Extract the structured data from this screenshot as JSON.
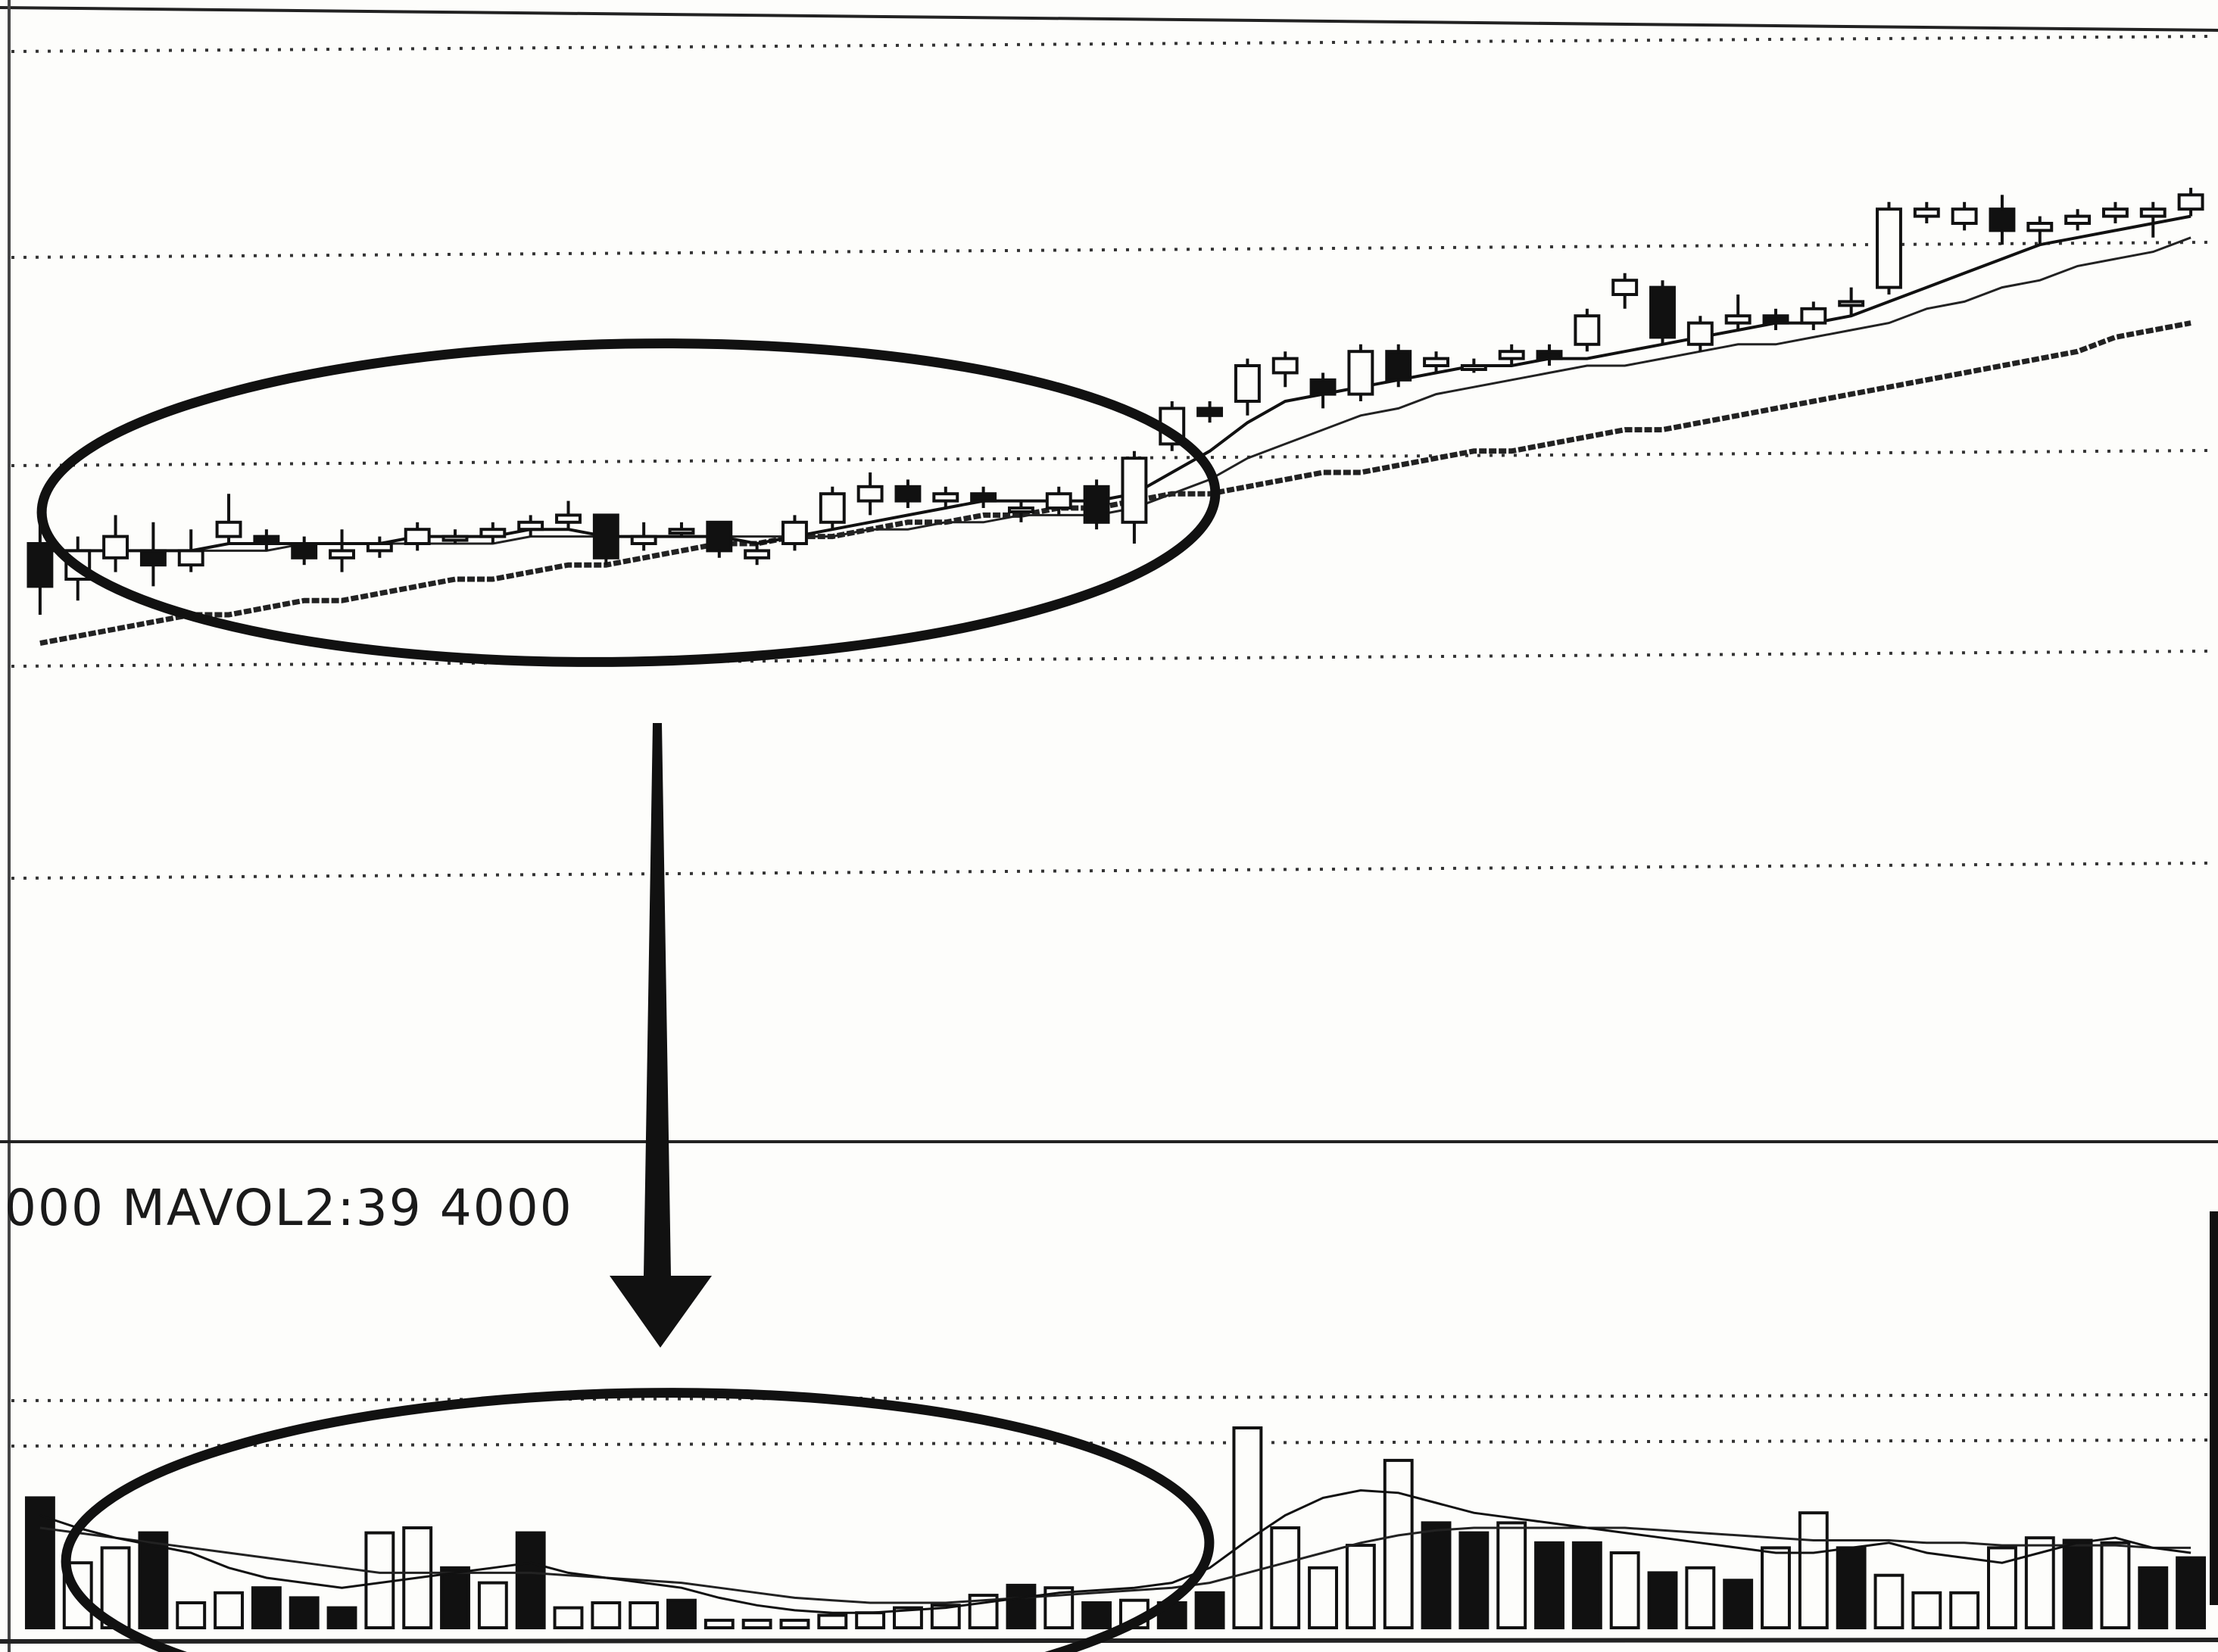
{
  "vol_label": "000 MAVOL2:39 4000",
  "chart_data": [
    {
      "type": "candlestick",
      "title": "",
      "xlabel": "",
      "ylabel": "",
      "grid": true,
      "x": [
        1,
        2,
        3,
        4,
        5,
        6,
        7,
        8,
        9,
        10,
        11,
        12,
        13,
        14,
        15,
        16,
        17,
        18,
        19,
        20,
        21,
        22,
        23,
        24,
        25,
        26,
        27,
        28,
        29,
        30,
        31,
        32,
        33,
        34,
        35,
        36,
        37,
        38,
        39,
        40,
        41,
        42,
        43,
        44,
        45,
        46,
        47,
        48,
        49,
        50,
        51,
        52,
        53,
        54,
        55,
        56,
        57,
        58
      ],
      "ylim": [
        0,
        100
      ],
      "candles": [
        {
          "o": 30,
          "h": 35,
          "l": 20,
          "c": 24
        },
        {
          "o": 25,
          "h": 31,
          "l": 22,
          "c": 29
        },
        {
          "o": 28,
          "h": 34,
          "l": 26,
          "c": 31
        },
        {
          "o": 29,
          "h": 33,
          "l": 24,
          "c": 27
        },
        {
          "o": 27,
          "h": 32,
          "l": 26,
          "c": 29
        },
        {
          "o": 31,
          "h": 37,
          "l": 30,
          "c": 33
        },
        {
          "o": 31,
          "h": 32,
          "l": 29,
          "c": 30
        },
        {
          "o": 30,
          "h": 31,
          "l": 27,
          "c": 28
        },
        {
          "o": 28,
          "h": 32,
          "l": 26,
          "c": 29
        },
        {
          "o": 29,
          "h": 31,
          "l": 28,
          "c": 30
        },
        {
          "o": 30,
          "h": 33,
          "l": 29,
          "c": 32
        },
        {
          "o": 31,
          "h": 32,
          "l": 30,
          "c": 31
        },
        {
          "o": 31,
          "h": 33,
          "l": 30,
          "c": 32
        },
        {
          "o": 32,
          "h": 34,
          "l": 31,
          "c": 33
        },
        {
          "o": 33,
          "h": 36,
          "l": 32,
          "c": 34
        },
        {
          "o": 34,
          "h": 34,
          "l": 27,
          "c": 28
        },
        {
          "o": 30,
          "h": 33,
          "l": 29,
          "c": 31
        },
        {
          "o": 32,
          "h": 33,
          "l": 31,
          "c": 32
        },
        {
          "o": 33,
          "h": 33,
          "l": 28,
          "c": 29
        },
        {
          "o": 28,
          "h": 30,
          "l": 27,
          "c": 29
        },
        {
          "o": 30,
          "h": 34,
          "l": 29,
          "c": 33
        },
        {
          "o": 33,
          "h": 38,
          "l": 32,
          "c": 37
        },
        {
          "o": 36,
          "h": 40,
          "l": 34,
          "c": 38
        },
        {
          "o": 38,
          "h": 39,
          "l": 35,
          "c": 36
        },
        {
          "o": 36,
          "h": 38,
          "l": 35,
          "c": 37
        },
        {
          "o": 37,
          "h": 38,
          "l": 35,
          "c": 36
        },
        {
          "o": 35,
          "h": 36,
          "l": 33,
          "c": 35
        },
        {
          "o": 35,
          "h": 38,
          "l": 34,
          "c": 37
        },
        {
          "o": 38,
          "h": 39,
          "l": 32,
          "c": 33
        },
        {
          "o": 33,
          "h": 43,
          "l": 30,
          "c": 42
        },
        {
          "o": 44,
          "h": 50,
          "l": 43,
          "c": 49
        },
        {
          "o": 49,
          "h": 50,
          "l": 47,
          "c": 48
        },
        {
          "o": 50,
          "h": 56,
          "l": 48,
          "c": 55
        },
        {
          "o": 54,
          "h": 57,
          "l": 52,
          "c": 56
        },
        {
          "o": 53,
          "h": 54,
          "l": 49,
          "c": 51
        },
        {
          "o": 51,
          "h": 58,
          "l": 50,
          "c": 57
        },
        {
          "o": 57,
          "h": 58,
          "l": 52,
          "c": 53
        },
        {
          "o": 55,
          "h": 57,
          "l": 54,
          "c": 56
        },
        {
          "o": 55,
          "h": 56,
          "l": 54,
          "c": 55
        },
        {
          "o": 56,
          "h": 58,
          "l": 55,
          "c": 57
        },
        {
          "o": 57,
          "h": 58,
          "l": 55,
          "c": 56
        },
        {
          "o": 58,
          "h": 63,
          "l": 57,
          "c": 62
        },
        {
          "o": 65,
          "h": 68,
          "l": 63,
          "c": 67
        },
        {
          "o": 66,
          "h": 67,
          "l": 58,
          "c": 59
        },
        {
          "o": 58,
          "h": 62,
          "l": 57,
          "c": 61
        },
        {
          "o": 61,
          "h": 65,
          "l": 60,
          "c": 62
        },
        {
          "o": 62,
          "h": 63,
          "l": 60,
          "c": 61
        },
        {
          "o": 61,
          "h": 64,
          "l": 60,
          "c": 63
        },
        {
          "o": 64,
          "h": 66,
          "l": 62,
          "c": 64
        },
        {
          "o": 66,
          "h": 78,
          "l": 65,
          "c": 77
        },
        {
          "o": 76,
          "h": 78,
          "l": 75,
          "c": 77
        },
        {
          "o": 75,
          "h": 78,
          "l": 74,
          "c": 77
        },
        {
          "o": 77,
          "h": 79,
          "l": 72,
          "c": 74
        },
        {
          "o": 74,
          "h": 76,
          "l": 72,
          "c": 75
        },
        {
          "o": 75,
          "h": 77,
          "l": 74,
          "c": 76
        },
        {
          "o": 76,
          "h": 78,
          "l": 75,
          "c": 77
        },
        {
          "o": 76,
          "h": 78,
          "l": 73,
          "c": 77
        },
        {
          "o": 77,
          "h": 80,
          "l": 76,
          "c": 79
        }
      ],
      "ma_short": [
        29,
        29,
        29,
        29,
        29,
        30,
        30,
        30,
        30,
        30,
        31,
        31,
        31,
        32,
        32,
        31,
        31,
        31,
        31,
        30,
        31,
        32,
        33,
        34,
        35,
        36,
        36,
        36,
        36,
        37,
        40,
        43,
        47,
        50,
        51,
        52,
        53,
        54,
        55,
        55,
        56,
        56,
        57,
        58,
        59,
        60,
        61,
        61,
        62,
        64,
        66,
        68,
        70,
        72,
        73,
        74,
        75,
        76
      ],
      "ma_mid": [
        29,
        29,
        29,
        29,
        29,
        29,
        29,
        30,
        30,
        30,
        30,
        30,
        30,
        31,
        31,
        31,
        31,
        31,
        31,
        31,
        31,
        31,
        32,
        32,
        33,
        33,
        34,
        34,
        34,
        35,
        37,
        39,
        42,
        44,
        46,
        48,
        49,
        51,
        52,
        53,
        54,
        55,
        55,
        56,
        57,
        58,
        58,
        59,
        60,
        61,
        63,
        64,
        66,
        67,
        69,
        70,
        71,
        73
      ],
      "ma_long": [
        16,
        17,
        18,
        19,
        20,
        20,
        21,
        22,
        22,
        23,
        24,
        25,
        25,
        26,
        27,
        27,
        28,
        29,
        30,
        30,
        31,
        31,
        32,
        33,
        33,
        34,
        34,
        35,
        35,
        36,
        37,
        37,
        38,
        39,
        40,
        40,
        41,
        42,
        43,
        43,
        44,
        45,
        46,
        46,
        47,
        48,
        49,
        50,
        51,
        52,
        53,
        54,
        55,
        56,
        57,
        59,
        60,
        61
      ],
      "annotation": "ellipse over consolidation phase"
    },
    {
      "type": "bar",
      "title": "",
      "xlabel": "",
      "ylabel": "",
      "grid": true,
      "ylim": [
        0,
        100
      ],
      "values": [
        52,
        26,
        32,
        38,
        10,
        14,
        16,
        12,
        8,
        38,
        40,
        24,
        18,
        38,
        8,
        10,
        10,
        11,
        3,
        3,
        3,
        5,
        6,
        8,
        9,
        13,
        17,
        16,
        10,
        11,
        10,
        14,
        80,
        40,
        24,
        33,
        67,
        42,
        38,
        42,
        34,
        34,
        30,
        22,
        24,
        19,
        32,
        46,
        32,
        21,
        14,
        14,
        32,
        36,
        35,
        34,
        24,
        28
      ],
      "filled": [
        true,
        false,
        false,
        true,
        false,
        false,
        true,
        true,
        true,
        false,
        false,
        true,
        false,
        true,
        false,
        false,
        false,
        true,
        false,
        false,
        false,
        false,
        false,
        false,
        false,
        false,
        true,
        false,
        true,
        false,
        true,
        true,
        false,
        false,
        false,
        false,
        false,
        true,
        true,
        false,
        true,
        true,
        false,
        true,
        false,
        true,
        false,
        false,
        true,
        false,
        false,
        false,
        false,
        false,
        true,
        false,
        true,
        true
      ],
      "ma_short": [
        45,
        40,
        36,
        33,
        30,
        24,
        20,
        18,
        16,
        18,
        20,
        22,
        24,
        26,
        22,
        20,
        18,
        16,
        12,
        9,
        7,
        6,
        6,
        7,
        8,
        10,
        12,
        14,
        15,
        16,
        18,
        24,
        35,
        45,
        52,
        55,
        54,
        50,
        46,
        44,
        42,
        40,
        38,
        36,
        34,
        32,
        30,
        30,
        32,
        34,
        30,
        28,
        26,
        30,
        34,
        36,
        32,
        30
      ],
      "ma_long": [
        40,
        38,
        36,
        34,
        32,
        30,
        28,
        26,
        24,
        22,
        22,
        22,
        22,
        22,
        21,
        20,
        19,
        18,
        16,
        14,
        12,
        11,
        10,
        10,
        10,
        11,
        12,
        13,
        14,
        15,
        16,
        18,
        22,
        26,
        30,
        34,
        37,
        39,
        40,
        40,
        40,
        40,
        40,
        39,
        38,
        37,
        36,
        35,
        35,
        35,
        34,
        34,
        33,
        33,
        33,
        33,
        32,
        32
      ],
      "annotation": "ellipse over shrinking volume"
    }
  ]
}
